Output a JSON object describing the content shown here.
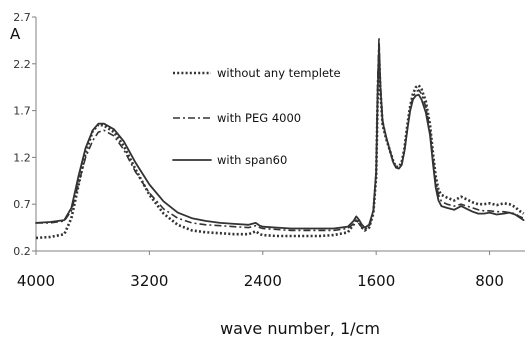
{
  "chart_data": {
    "type": "line",
    "ylabel": "A",
    "xlabel": "wave number, 1/cm",
    "xlim": [
      4000,
      550
    ],
    "ylim": [
      0.2,
      2.7
    ],
    "y_ticks": [
      "0.2",
      "0.7",
      "1.2",
      "1.7",
      "2.2",
      "2.7"
    ],
    "x_ticks": [
      "4000",
      "3200",
      "2400",
      "1600",
      "800"
    ],
    "legend_position": "upper-middle",
    "colors": {
      "series": "#333333",
      "axis": "#808080"
    },
    "series": [
      {
        "name": "without any templete",
        "style": "dotted",
        "points": [
          [
            4000,
            0.34
          ],
          [
            3900,
            0.35
          ],
          [
            3800,
            0.38
          ],
          [
            3750,
            0.55
          ],
          [
            3700,
            0.9
          ],
          [
            3650,
            1.25
          ],
          [
            3600,
            1.48
          ],
          [
            3560,
            1.55
          ],
          [
            3520,
            1.54
          ],
          [
            3450,
            1.47
          ],
          [
            3380,
            1.32
          ],
          [
            3300,
            1.08
          ],
          [
            3200,
            0.8
          ],
          [
            3100,
            0.6
          ],
          [
            3000,
            0.48
          ],
          [
            2900,
            0.42
          ],
          [
            2800,
            0.4
          ],
          [
            2700,
            0.39
          ],
          [
            2600,
            0.38
          ],
          [
            2500,
            0.38
          ],
          [
            2450,
            0.41
          ],
          [
            2420,
            0.38
          ],
          [
            2400,
            0.37
          ],
          [
            2300,
            0.36
          ],
          [
            2200,
            0.36
          ],
          [
            2100,
            0.36
          ],
          [
            2000,
            0.36
          ],
          [
            1900,
            0.37
          ],
          [
            1800,
            0.4
          ],
          [
            1760,
            0.48
          ],
          [
            1740,
            0.54
          ],
          [
            1720,
            0.5
          ],
          [
            1700,
            0.45
          ],
          [
            1680,
            0.42
          ],
          [
            1650,
            0.45
          ],
          [
            1620,
            0.6
          ],
          [
            1600,
            1.0
          ],
          [
            1590,
            1.8
          ],
          [
            1580,
            2.3
          ],
          [
            1570,
            1.9
          ],
          [
            1555,
            1.55
          ],
          [
            1530,
            1.4
          ],
          [
            1500,
            1.26
          ],
          [
            1480,
            1.16
          ],
          [
            1460,
            1.1
          ],
          [
            1440,
            1.1
          ],
          [
            1420,
            1.15
          ],
          [
            1400,
            1.3
          ],
          [
            1380,
            1.55
          ],
          [
            1360,
            1.75
          ],
          [
            1340,
            1.88
          ],
          [
            1320,
            1.95
          ],
          [
            1300,
            1.97
          ],
          [
            1280,
            1.93
          ],
          [
            1250,
            1.8
          ],
          [
            1220,
            1.55
          ],
          [
            1200,
            1.25
          ],
          [
            1180,
            1.0
          ],
          [
            1160,
            0.85
          ],
          [
            1140,
            0.8
          ],
          [
            1100,
            0.77
          ],
          [
            1050,
            0.74
          ],
          [
            1000,
            0.78
          ],
          [
            960,
            0.75
          ],
          [
            920,
            0.72
          ],
          [
            880,
            0.7
          ],
          [
            840,
            0.7
          ],
          [
            800,
            0.71
          ],
          [
            750,
            0.69
          ],
          [
            700,
            0.71
          ],
          [
            660,
            0.7
          ],
          [
            620,
            0.67
          ],
          [
            590,
            0.63
          ],
          [
            560,
            0.6
          ]
        ]
      },
      {
        "name": "with PEG 4000",
        "style": "dashdot",
        "points": [
          [
            4000,
            0.5
          ],
          [
            3900,
            0.5
          ],
          [
            3800,
            0.52
          ],
          [
            3750,
            0.63
          ],
          [
            3700,
            0.92
          ],
          [
            3650,
            1.2
          ],
          [
            3600,
            1.38
          ],
          [
            3560,
            1.47
          ],
          [
            3520,
            1.49
          ],
          [
            3450,
            1.43
          ],
          [
            3380,
            1.28
          ],
          [
            3300,
            1.05
          ],
          [
            3200,
            0.82
          ],
          [
            3100,
            0.65
          ],
          [
            3000,
            0.55
          ],
          [
            2900,
            0.5
          ],
          [
            2800,
            0.48
          ],
          [
            2700,
            0.47
          ],
          [
            2600,
            0.46
          ],
          [
            2500,
            0.45
          ],
          [
            2450,
            0.47
          ],
          [
            2420,
            0.45
          ],
          [
            2400,
            0.44
          ],
          [
            2300,
            0.43
          ],
          [
            2200,
            0.42
          ],
          [
            2100,
            0.42
          ],
          [
            2000,
            0.42
          ],
          [
            1900,
            0.42
          ],
          [
            1800,
            0.44
          ],
          [
            1760,
            0.49
          ],
          [
            1740,
            0.53
          ],
          [
            1720,
            0.49
          ],
          [
            1700,
            0.45
          ],
          [
            1680,
            0.43
          ],
          [
            1650,
            0.46
          ],
          [
            1620,
            0.6
          ],
          [
            1600,
            1.05
          ],
          [
            1590,
            2.0
          ],
          [
            1580,
            2.48
          ],
          [
            1570,
            2.0
          ],
          [
            1555,
            1.6
          ],
          [
            1530,
            1.42
          ],
          [
            1500,
            1.25
          ],
          [
            1480,
            1.15
          ],
          [
            1460,
            1.09
          ],
          [
            1440,
            1.08
          ],
          [
            1420,
            1.12
          ],
          [
            1400,
            1.27
          ],
          [
            1380,
            1.5
          ],
          [
            1360,
            1.72
          ],
          [
            1340,
            1.85
          ],
          [
            1320,
            1.9
          ],
          [
            1300,
            1.92
          ],
          [
            1280,
            1.88
          ],
          [
            1250,
            1.74
          ],
          [
            1220,
            1.5
          ],
          [
            1200,
            1.2
          ],
          [
            1180,
            0.94
          ],
          [
            1160,
            0.8
          ],
          [
            1140,
            0.73
          ],
          [
            1100,
            0.7
          ],
          [
            1050,
            0.68
          ],
          [
            1000,
            0.7
          ],
          [
            960,
            0.68
          ],
          [
            920,
            0.66
          ],
          [
            880,
            0.64
          ],
          [
            840,
            0.63
          ],
          [
            800,
            0.63
          ],
          [
            750,
            0.62
          ],
          [
            700,
            0.62
          ],
          [
            660,
            0.61
          ],
          [
            620,
            0.6
          ],
          [
            590,
            0.57
          ],
          [
            560,
            0.55
          ]
        ]
      },
      {
        "name": "with span60",
        "style": "solid",
        "points": [
          [
            4000,
            0.5
          ],
          [
            3900,
            0.51
          ],
          [
            3800,
            0.53
          ],
          [
            3750,
            0.66
          ],
          [
            3700,
            1.0
          ],
          [
            3650,
            1.3
          ],
          [
            3600,
            1.49
          ],
          [
            3560,
            1.56
          ],
          [
            3520,
            1.56
          ],
          [
            3450,
            1.5
          ],
          [
            3380,
            1.37
          ],
          [
            3300,
            1.15
          ],
          [
            3200,
            0.91
          ],
          [
            3100,
            0.73
          ],
          [
            3000,
            0.61
          ],
          [
            2900,
            0.55
          ],
          [
            2800,
            0.52
          ],
          [
            2700,
            0.5
          ],
          [
            2600,
            0.49
          ],
          [
            2500,
            0.48
          ],
          [
            2450,
            0.5
          ],
          [
            2420,
            0.47
          ],
          [
            2400,
            0.46
          ],
          [
            2300,
            0.45
          ],
          [
            2200,
            0.44
          ],
          [
            2100,
            0.44
          ],
          [
            2000,
            0.44
          ],
          [
            1900,
            0.44
          ],
          [
            1800,
            0.46
          ],
          [
            1760,
            0.52
          ],
          [
            1740,
            0.57
          ],
          [
            1720,
            0.53
          ],
          [
            1700,
            0.48
          ],
          [
            1680,
            0.45
          ],
          [
            1650,
            0.48
          ],
          [
            1620,
            0.63
          ],
          [
            1600,
            1.05
          ],
          [
            1590,
            1.85
          ],
          [
            1580,
            2.4
          ],
          [
            1570,
            1.95
          ],
          [
            1555,
            1.58
          ],
          [
            1530,
            1.42
          ],
          [
            1500,
            1.26
          ],
          [
            1480,
            1.15
          ],
          [
            1460,
            1.09
          ],
          [
            1440,
            1.08
          ],
          [
            1420,
            1.12
          ],
          [
            1400,
            1.27
          ],
          [
            1380,
            1.5
          ],
          [
            1360,
            1.7
          ],
          [
            1340,
            1.82
          ],
          [
            1320,
            1.86
          ],
          [
            1300,
            1.87
          ],
          [
            1280,
            1.82
          ],
          [
            1250,
            1.68
          ],
          [
            1220,
            1.44
          ],
          [
            1200,
            1.14
          ],
          [
            1180,
            0.88
          ],
          [
            1160,
            0.74
          ],
          [
            1140,
            0.68
          ],
          [
            1100,
            0.66
          ],
          [
            1050,
            0.64
          ],
          [
            1000,
            0.68
          ],
          [
            960,
            0.65
          ],
          [
            920,
            0.62
          ],
          [
            880,
            0.6
          ],
          [
            840,
            0.6
          ],
          [
            800,
            0.61
          ],
          [
            750,
            0.59
          ],
          [
            700,
            0.6
          ],
          [
            660,
            0.61
          ],
          [
            620,
            0.59
          ],
          [
            590,
            0.56
          ],
          [
            560,
            0.53
          ]
        ]
      }
    ]
  }
}
